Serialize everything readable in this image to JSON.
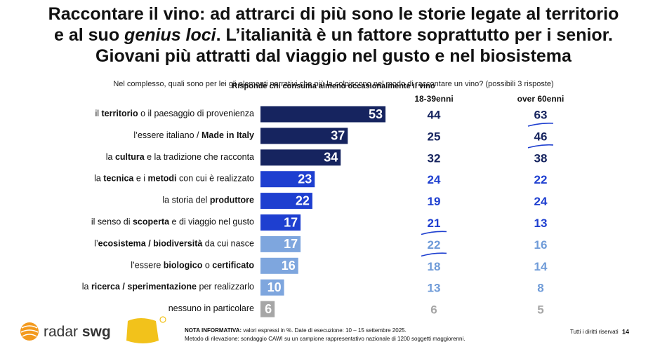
{
  "chart_data": {
    "type": "bar",
    "title": [
      [
        {
          "text": "Raccontare il vino: ad attrarci di più sono le storie legate al territorio"
        }
      ],
      [
        {
          "text": "e al suo "
        },
        {
          "text": "genius loci",
          "italic": true
        },
        {
          "text": ". L’italianità è un fattore soprattutto per i senior."
        }
      ],
      [
        {
          "text": "Giovani più attratti dal viaggio nel gusto e nel biosistema"
        }
      ]
    ],
    "subtitle": "Nel complesso, quali sono per lei gli elementi narrativi che più la colpiscono nel modo di raccontare un vino? (possibili 3 risposte)",
    "base": "Risponde chi consuma almeno occasionalmente il vino",
    "categories": [
      [
        {
          "text": "il "
        },
        {
          "text": "territorio",
          "bold": true
        },
        {
          "text": " o il paesaggio di provenienza"
        }
      ],
      [
        {
          "text": "l’essere italiano / "
        },
        {
          "text": "Made in Italy",
          "bold": true
        }
      ],
      [
        {
          "text": "la "
        },
        {
          "text": "cultura",
          "bold": true
        },
        {
          "text": " e la tradizione che racconta"
        }
      ],
      [
        {
          "text": "la "
        },
        {
          "text": "tecnica",
          "bold": true
        },
        {
          "text": " e i "
        },
        {
          "text": "metodi",
          "bold": true
        },
        {
          "text": " con cui è realizzato"
        }
      ],
      [
        {
          "text": "la storia del "
        },
        {
          "text": "produttore",
          "bold": true
        }
      ],
      [
        {
          "text": "il senso di "
        },
        {
          "text": "scoperta",
          "bold": true
        },
        {
          "text": " e di viaggio nel gusto"
        }
      ],
      [
        {
          "text": "l’"
        },
        {
          "text": "ecosistema / biodiversità",
          "bold": true
        },
        {
          "text": " da cui nasce"
        }
      ],
      [
        {
          "text": "l’essere "
        },
        {
          "text": "biologico",
          "bold": true
        },
        {
          "text": " o "
        },
        {
          "text": "certificato",
          "bold": true
        }
      ],
      [
        {
          "text": "la "
        },
        {
          "text": "ricerca / sperimentazione",
          "bold": true
        },
        {
          "text": " per realizzarlo"
        }
      ],
      [
        {
          "text": "nessuno in particolare"
        }
      ]
    ],
    "values": [
      53,
      37,
      34,
      23,
      22,
      17,
      17,
      16,
      10,
      6
    ],
    "colors": [
      "#16245f",
      "#16245f",
      "#16245f",
      "#1e3fd0",
      "#1e3fd0",
      "#1e3fd0",
      "#7ea6de",
      "#7ea6de",
      "#7ea6de",
      "#a6a6a6"
    ],
    "columns": [
      {
        "name": "18-39enni",
        "values": [
          44,
          25,
          32,
          24,
          19,
          21,
          22,
          18,
          13,
          6
        ],
        "colors": [
          "#16245f",
          "#16245f",
          "#16245f",
          "#1e3fd0",
          "#1e3fd0",
          "#1e3fd0",
          "#6f9bd8",
          "#6f9bd8",
          "#6f9bd8",
          "#a6a6a6"
        ],
        "underlined": [
          5,
          6
        ]
      },
      {
        "name": "over 60enni",
        "values": [
          63,
          46,
          38,
          22,
          24,
          13,
          16,
          14,
          8,
          5
        ],
        "colors": [
          "#16245f",
          "#16245f",
          "#16245f",
          "#1e3fd0",
          "#1e3fd0",
          "#1e3fd0",
          "#6f9bd8",
          "#6f9bd8",
          "#6f9bd8",
          "#a6a6a6"
        ],
        "underlined": [
          0,
          1
        ]
      }
    ]
  },
  "footer": {
    "logo": [
      {
        "text": "radar "
      },
      {
        "text": "swg",
        "bold": true
      }
    ],
    "note": [
      {
        "text": "NOTA INFORMATIVA:",
        "bold": true
      },
      {
        "text": " valori espressi in %. Date di esecuzione: 10 – 15 settembre 2025."
      }
    ],
    "method": "Metodo di rilevazione: sondaggio CAWI su un campione rappresentativo nazionale di 1200 soggetti maggiorenni.",
    "rights": "Tutti i diritti riservati",
    "page": "14"
  }
}
